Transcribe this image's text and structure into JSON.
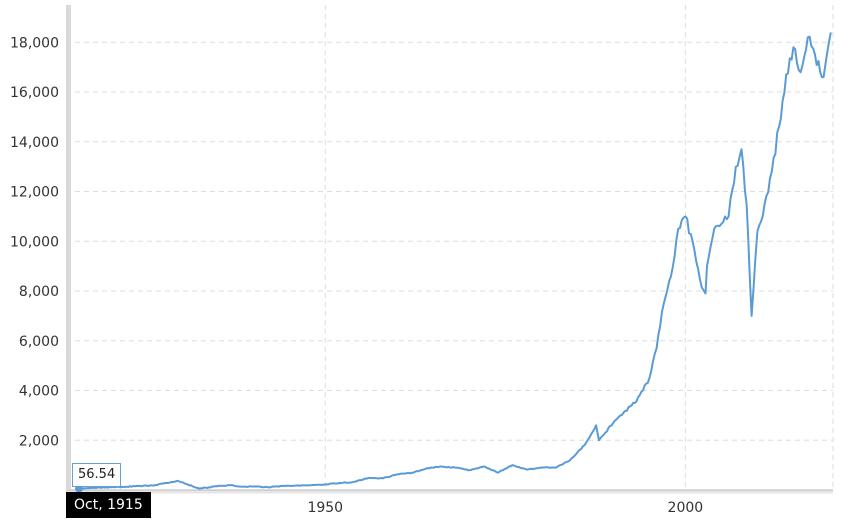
{
  "chart_data": {
    "type": "line",
    "title": "",
    "xlabel": "",
    "ylabel": "",
    "xlim": [
      1914,
      2020.5
    ],
    "ylim": [
      0,
      19500
    ],
    "y_ticks": [
      2000,
      4000,
      6000,
      8000,
      10000,
      12000,
      14000,
      16000,
      18000
    ],
    "y_tick_labels": [
      "2,000",
      "4,000",
      "6,000",
      "8,000",
      "10,000",
      "12,000",
      "14,000",
      "16,000",
      "18,000"
    ],
    "x_ticks": [
      1950,
      2000
    ],
    "x_tick_labels": [
      "1950",
      "2000"
    ],
    "grid": true,
    "line_color": "#5b9bd5",
    "series": [
      {
        "x": [
          1915.8,
          1918,
          1920,
          1922,
          1924,
          1926,
          1928,
          1929.5,
          1930.5,
          1932.5,
          1935,
          1937,
          1938,
          1940,
          1942,
          1944,
          1946,
          1948,
          1950,
          1952,
          1954,
          1956,
          1958,
          1960,
          1962,
          1964,
          1966,
          1968,
          1970,
          1972,
          1974,
          1976,
          1978,
          1980,
          1982,
          1984,
          1986,
          1987.6,
          1988,
          1990,
          1991,
          1993,
          1995,
          1996,
          1997,
          1998,
          1999,
          2000,
          2001,
          2002,
          2002.8,
          2003,
          2004,
          2005,
          2006,
          2007,
          2007.8,
          2008.5,
          2009.2,
          2010,
          2011,
          2012,
          2013,
          2014,
          2015,
          2016,
          2017,
          2018,
          2019.2,
          2019.6,
          2020.2
        ],
        "y": [
          56.54,
          90,
          110,
          120,
          160,
          180,
          280,
          370,
          260,
          60,
          150,
          200,
          140,
          140,
          110,
          160,
          180,
          190,
          230,
          280,
          330,
          490,
          470,
          630,
          690,
          860,
          950,
          900,
          800,
          950,
          700,
          1000,
          820,
          900,
          900,
          1200,
          1800,
          2600,
          2000,
          2700,
          3000,
          3500,
          4500,
          5700,
          7500,
          8600,
          10500,
          11000,
          10000,
          8500,
          7900,
          9000,
          10500,
          10700,
          11000,
          13000,
          13700,
          11500,
          7000,
          10400,
          11500,
          12800,
          14600,
          16700,
          17800,
          16800,
          18200,
          17500,
          16600,
          17400,
          18400
        ]
      }
    ],
    "tooltip_value": "56.54",
    "tooltip_date": "Oct, 1915"
  }
}
